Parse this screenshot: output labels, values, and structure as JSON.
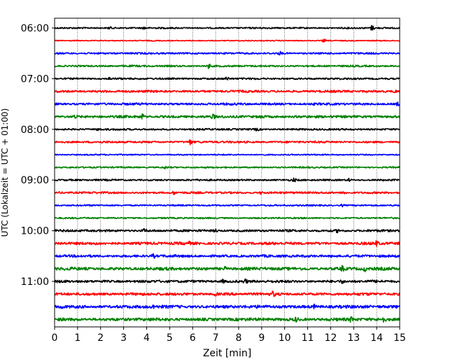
{
  "chart_data": {
    "type": "line",
    "title": "",
    "xlabel": "Zeit  [min]",
    "ylabel": "UTC (Lokalzeit = UTC + 01:00)",
    "xlim": [
      0,
      15
    ],
    "x_ticks": [
      0,
      1,
      2,
      3,
      4,
      5,
      6,
      7,
      8,
      9,
      10,
      11,
      12,
      13,
      14,
      15
    ],
    "y_ticks": [
      "06:00",
      "07:00",
      "08:00",
      "09:00",
      "10:00",
      "11:00"
    ],
    "grid_x": true,
    "row_interval_minutes": 15,
    "start_time": "06:00",
    "end_time": "11:45",
    "color_cycle": [
      "#000000",
      "#ff0000",
      "#0000ff",
      "#008000"
    ],
    "series": [
      {
        "start": "06:00",
        "color": "#000000",
        "amplitude": 0.6,
        "bursts": [
          {
            "t": 2.4,
            "a": 1.2
          },
          {
            "t": 3.9,
            "a": 1.1
          },
          {
            "t": 13.8,
            "a": 2.4
          }
        ]
      },
      {
        "start": "06:15",
        "color": "#ff0000",
        "amplitude": 0.4,
        "bursts": [
          {
            "t": 11.7,
            "a": 1.6
          }
        ]
      },
      {
        "start": "06:30",
        "color": "#0000ff",
        "amplitude": 0.7,
        "bursts": [
          {
            "t": 9.8,
            "a": 1.1
          }
        ]
      },
      {
        "start": "06:45",
        "color": "#008000",
        "amplitude": 0.7,
        "bursts": [
          {
            "t": 6.7,
            "a": 2.2
          }
        ]
      },
      {
        "start": "07:00",
        "color": "#000000",
        "amplitude": 0.7,
        "bursts": [
          {
            "t": 2.4,
            "a": 1.0
          },
          {
            "t": 7.5,
            "a": 1.3
          }
        ]
      },
      {
        "start": "07:15",
        "color": "#ff0000",
        "amplitude": 0.9,
        "bursts": [
          {
            "t": 14.8,
            "a": 1.2
          }
        ]
      },
      {
        "start": "07:30",
        "color": "#0000ff",
        "amplitude": 0.9,
        "bursts": [
          {
            "t": 14.9,
            "a": 1.4
          }
        ]
      },
      {
        "start": "07:45",
        "color": "#008000",
        "amplitude": 1.0,
        "bursts": [
          {
            "t": 0.9,
            "a": 1.3
          },
          {
            "t": 3.8,
            "a": 2.5
          },
          {
            "t": 6.9,
            "a": 1.3
          },
          {
            "t": 9.0,
            "a": 1.2
          }
        ]
      },
      {
        "start": "08:00",
        "color": "#000000",
        "amplitude": 0.7,
        "bursts": [
          {
            "t": 1.9,
            "a": 1.2
          },
          {
            "t": 8.8,
            "a": 1.1
          }
        ]
      },
      {
        "start": "08:15",
        "color": "#ff0000",
        "amplitude": 0.8,
        "bursts": [
          {
            "t": 5.9,
            "a": 2.0
          }
        ]
      },
      {
        "start": "08:30",
        "color": "#0000ff",
        "amplitude": 0.5,
        "bursts": []
      },
      {
        "start": "08:45",
        "color": "#008000",
        "amplitude": 0.6,
        "bursts": [
          {
            "t": 4.8,
            "a": 1.1
          }
        ]
      },
      {
        "start": "09:00",
        "color": "#000000",
        "amplitude": 0.7,
        "bursts": [
          {
            "t": 10.4,
            "a": 1.2
          },
          {
            "t": 12.8,
            "a": 1.2
          }
        ]
      },
      {
        "start": "09:15",
        "color": "#ff0000",
        "amplitude": 0.8,
        "bursts": [
          {
            "t": 5.2,
            "a": 1.3
          },
          {
            "t": 9.0,
            "a": 1.3
          },
          {
            "t": 12.6,
            "a": 1.4
          }
        ]
      },
      {
        "start": "09:30",
        "color": "#0000ff",
        "amplitude": 0.6,
        "bursts": [
          {
            "t": 12.5,
            "a": 1.1
          }
        ]
      },
      {
        "start": "09:45",
        "color": "#008000",
        "amplitude": 0.6,
        "bursts": []
      },
      {
        "start": "10:00",
        "color": "#000000",
        "amplitude": 0.9,
        "bursts": [
          {
            "t": 3.9,
            "a": 1.4
          },
          {
            "t": 7.0,
            "a": 1.3
          },
          {
            "t": 12.3,
            "a": 1.2
          }
        ]
      },
      {
        "start": "10:15",
        "color": "#ff0000",
        "amplitude": 1.1,
        "bursts": [
          {
            "t": 5.8,
            "a": 1.4
          },
          {
            "t": 14.0,
            "a": 1.6
          }
        ]
      },
      {
        "start": "10:30",
        "color": "#0000ff",
        "amplitude": 1.0,
        "bursts": [
          {
            "t": 4.3,
            "a": 1.5
          },
          {
            "t": 12.1,
            "a": 1.3
          }
        ]
      },
      {
        "start": "10:45",
        "color": "#008000",
        "amplitude": 1.2,
        "bursts": [
          {
            "t": 7.4,
            "a": 1.5
          },
          {
            "t": 12.5,
            "a": 1.8
          },
          {
            "t": 13.5,
            "a": 1.6
          }
        ]
      },
      {
        "start": "11:00",
        "color": "#000000",
        "amplitude": 1.0,
        "bursts": [
          {
            "t": 7.3,
            "a": 1.5
          },
          {
            "t": 8.3,
            "a": 1.4
          },
          {
            "t": 12.5,
            "a": 1.3
          }
        ]
      },
      {
        "start": "11:15",
        "color": "#ff0000",
        "amplitude": 1.1,
        "bursts": [
          {
            "t": 7.0,
            "a": 1.4
          },
          {
            "t": 9.5,
            "a": 1.6
          }
        ]
      },
      {
        "start": "11:30",
        "color": "#0000ff",
        "amplitude": 1.2,
        "bursts": [
          {
            "t": 0.3,
            "a": 1.4
          },
          {
            "t": 4.3,
            "a": 1.3
          },
          {
            "t": 11.3,
            "a": 1.4
          }
        ]
      },
      {
        "start": "11:45",
        "color": "#008000",
        "amplitude": 1.2,
        "bursts": [
          {
            "t": 10.5,
            "a": 1.7
          },
          {
            "t": 12.9,
            "a": 1.8
          },
          {
            "t": 14.3,
            "a": 1.8
          }
        ]
      }
    ]
  }
}
